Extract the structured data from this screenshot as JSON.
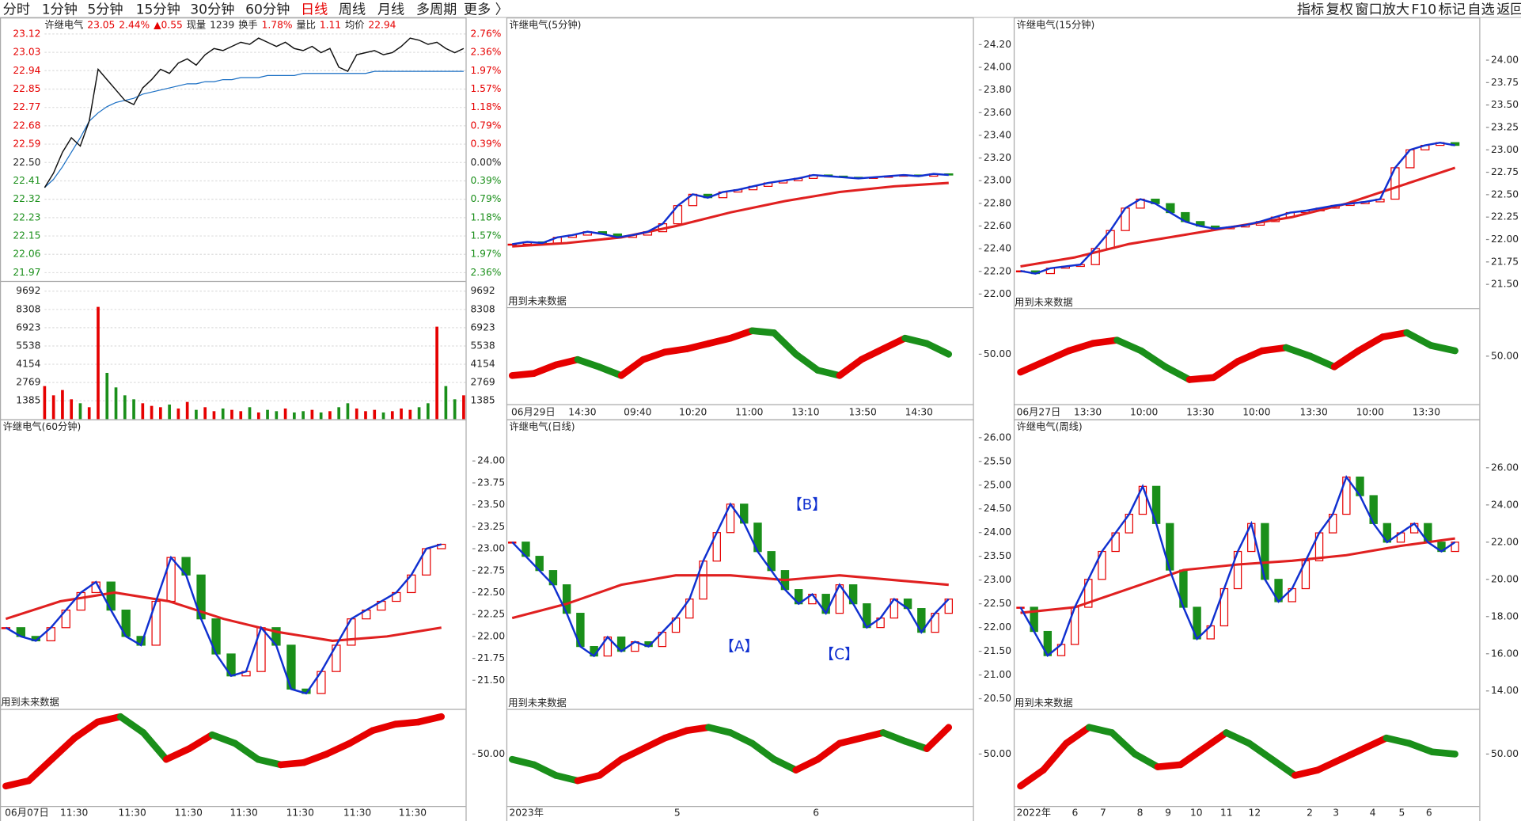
{
  "toolbar": {
    "tabs": [
      "分时",
      "1分钟",
      "5分钟",
      "15分钟",
      "30分钟",
      "60分钟",
      "日线",
      "周线",
      "月线",
      "多周期",
      "更多 〉"
    ],
    "active": 6,
    "tools": [
      "指标",
      "复权",
      "窗口放大",
      "F10",
      "标记",
      "自选",
      "返回"
    ]
  },
  "colors": {
    "up": "#e60000",
    "down": "#1a8f1a",
    "zigzag": "#1030d0",
    "avg": "#1a6fc4",
    "ma": "#e02020",
    "annotation": "#1030d0",
    "text": "#222222"
  },
  "intraday": {
    "header": [
      {
        "text": "许继电气",
        "color": "#222222"
      },
      {
        "text": "23.05",
        "color": "#e60000"
      },
      {
        "text": "2.44%",
        "color": "#e60000"
      },
      {
        "text": "▲0.55",
        "color": "#e60000"
      },
      {
        "text": "现量",
        "color": "#222222"
      },
      {
        "text": "1239",
        "color": "#222222"
      },
      {
        "text": "换手",
        "color": "#222222"
      },
      {
        "text": "1.78%",
        "color": "#e60000"
      },
      {
        "text": "量比",
        "color": "#222222"
      },
      {
        "text": "1.11",
        "color": "#e60000"
      },
      {
        "text": "均价",
        "color": "#222222"
      },
      {
        "text": "22.94",
        "color": "#e60000"
      }
    ],
    "price_labels": [
      "23.12",
      "23.03",
      "22.94",
      "22.85",
      "22.77",
      "22.68",
      "22.59",
      "22.50",
      "22.41",
      "22.32",
      "22.23",
      "22.15",
      "22.06",
      "21.97"
    ],
    "pct_labels": [
      "2.76%",
      "2.36%",
      "1.97%",
      "1.57%",
      "1.18%",
      "0.79%",
      "0.39%",
      "0.00%",
      "0.39%",
      "0.79%",
      "1.18%",
      "1.57%",
      "1.97%",
      "2.36%"
    ],
    "volume_labels": [
      "9692",
      "8308",
      "6923",
      "5538",
      "4154",
      "2769",
      "1385"
    ],
    "price": [
      22.38,
      22.45,
      22.55,
      22.62,
      22.58,
      22.7,
      22.95,
      22.9,
      22.85,
      22.8,
      22.78,
      22.86,
      22.9,
      22.95,
      22.93,
      22.98,
      23.0,
      22.97,
      23.02,
      23.05,
      23.04,
      23.06,
      23.08,
      23.07,
      23.1,
      23.08,
      23.06,
      23.08,
      23.05,
      23.04,
      23.06,
      23.03,
      23.05,
      22.96,
      22.94,
      23.02,
      23.03,
      23.04,
      23.02,
      23.03,
      23.06,
      23.1,
      23.09,
      23.07,
      23.08,
      23.05,
      23.03,
      23.05
    ],
    "avg": [
      22.38,
      22.42,
      22.48,
      22.55,
      22.62,
      22.7,
      22.74,
      22.77,
      22.79,
      22.8,
      22.81,
      22.83,
      22.84,
      22.85,
      22.86,
      22.87,
      22.88,
      22.88,
      22.89,
      22.89,
      22.9,
      22.9,
      22.91,
      22.91,
      22.91,
      22.92,
      22.92,
      22.92,
      22.92,
      22.93,
      22.93,
      22.93,
      22.93,
      22.93,
      22.93,
      22.93,
      22.93,
      22.94,
      22.94,
      22.94,
      22.94,
      22.94,
      22.94,
      22.94,
      22.94,
      22.94,
      22.94,
      22.94
    ],
    "volume": [
      2500,
      1800,
      2200,
      1500,
      1200,
      900,
      8500,
      3500,
      2400,
      1800,
      1500,
      1200,
      1000,
      900,
      1100,
      800,
      1300,
      700,
      900,
      600,
      800,
      700,
      600,
      900,
      500,
      700,
      600,
      800,
      500,
      600,
      700,
      500,
      600,
      900,
      1200,
      800,
      600,
      700,
      500,
      600,
      800,
      700,
      900,
      1200,
      7000,
      2500,
      1500,
      1800
    ]
  },
  "panels": [
    {
      "title": "许继电气(5分钟)",
      "price_labels": [
        "24.20",
        "24.00",
        "23.80",
        "23.60",
        "23.40",
        "23.20",
        "23.00",
        "22.80",
        "22.60",
        "22.40",
        "22.20",
        "22.00"
      ],
      "osc_label": "50.00",
      "notice": "用到未来数据",
      "x_labels": [
        "06月29日",
        "14:30",
        "09:40",
        "10:20",
        "11:00",
        "13:10",
        "13:50",
        "14:30"
      ],
      "closes": [
        22.44,
        22.46,
        22.45,
        22.5,
        22.52,
        22.55,
        22.53,
        22.5,
        22.52,
        22.55,
        22.62,
        22.78,
        22.88,
        22.85,
        22.9,
        22.92,
        22.95,
        22.98,
        23.0,
        23.02,
        23.05,
        23.04,
        23.03,
        23.02,
        23.03,
        23.04,
        23.05,
        23.04,
        23.06,
        23.05
      ],
      "ma": [
        22.42,
        22.45,
        22.5,
        22.6,
        22.72,
        22.82,
        22.9,
        22.95,
        22.98
      ],
      "indicator": [
        30,
        32,
        40,
        45,
        38,
        30,
        45,
        52,
        55,
        60,
        65,
        72,
        70,
        50,
        35,
        30,
        45,
        55,
        65,
        60,
        50
      ]
    },
    {
      "title": "许继电气(15分钟)",
      "price_labels": [
        "24.00",
        "23.75",
        "23.50",
        "23.25",
        "23.00",
        "22.75",
        "22.50",
        "22.25",
        "22.00",
        "21.75",
        "21.50"
      ],
      "osc_label": "50.00",
      "notice": "用到未来数据",
      "x_labels": [
        "06月27日",
        "13:30",
        "10:00",
        "13:30",
        "10:00",
        "13:30",
        "10:00",
        "13:30"
      ],
      "closes": [
        21.65,
        21.62,
        21.68,
        21.7,
        21.72,
        21.9,
        22.1,
        22.35,
        22.45,
        22.4,
        22.3,
        22.2,
        22.15,
        22.12,
        22.14,
        22.16,
        22.2,
        22.25,
        22.3,
        22.32,
        22.35,
        22.38,
        22.4,
        22.42,
        22.45,
        22.8,
        23.0,
        23.05,
        23.08,
        23.05
      ],
      "ma": [
        21.7,
        21.8,
        21.95,
        22.05,
        22.15,
        22.25,
        22.4,
        22.6,
        22.8
      ],
      "indicator": [
        35,
        45,
        55,
        62,
        65,
        55,
        40,
        28,
        30,
        45,
        55,
        58,
        50,
        40,
        55,
        68,
        72,
        60,
        55
      ]
    },
    {
      "title": "许继电气(60分钟)",
      "price_labels": [
        "24.00",
        "23.75",
        "23.50",
        "23.25",
        "23.00",
        "22.75",
        "22.50",
        "22.25",
        "22.00",
        "21.75",
        "21.50"
      ],
      "osc_label": "50.00",
      "notice": "用到未来数据",
      "x_labels": [
        "06月07日",
        "11:30",
        "11:30",
        "11:30",
        "11:30",
        "11:30",
        "11:30",
        "11:30"
      ],
      "closes": [
        22.1,
        22.0,
        21.95,
        22.1,
        22.3,
        22.5,
        22.62,
        22.3,
        22.0,
        21.9,
        22.4,
        22.9,
        22.7,
        22.2,
        21.8,
        21.55,
        21.6,
        22.1,
        21.9,
        21.4,
        21.35,
        21.6,
        21.9,
        22.2,
        22.3,
        22.4,
        22.5,
        22.7,
        23.0,
        23.05
      ],
      "ma": [
        22.2,
        22.4,
        22.5,
        22.4,
        22.2,
        22.05,
        21.95,
        22.0,
        22.1
      ],
      "indicator": [
        20,
        25,
        45,
        65,
        80,
        85,
        70,
        45,
        55,
        68,
        60,
        45,
        40,
        42,
        50,
        60,
        72,
        78,
        80,
        85
      ]
    },
    {
      "title": "许继电气(日线)",
      "price_labels": [
        "26.00",
        "25.50",
        "25.00",
        "24.50",
        "24.00",
        "23.50",
        "23.00",
        "22.50",
        "22.00",
        "21.50",
        "21.00",
        "20.50"
      ],
      "osc_label": "50.00",
      "notice": "用到未来数据",
      "x_labels": [
        "2023年",
        "5",
        "6"
      ],
      "annotations": [
        "【B】",
        "【A】",
        "【C】"
      ],
      "closes": [
        23.8,
        23.5,
        23.2,
        22.9,
        22.3,
        21.6,
        21.4,
        21.8,
        21.5,
        21.7,
        21.6,
        21.9,
        22.2,
        22.6,
        23.4,
        24.0,
        24.6,
        24.2,
        23.6,
        23.2,
        22.8,
        22.5,
        22.7,
        22.3,
        22.9,
        22.5,
        22.0,
        22.2,
        22.6,
        22.4,
        21.9,
        22.3,
        22.6
      ],
      "ma": [
        22.2,
        22.5,
        22.9,
        23.1,
        23.1,
        23.0,
        23.1,
        23.0,
        22.9
      ],
      "indicator": [
        45,
        40,
        30,
        25,
        30,
        45,
        55,
        65,
        72,
        75,
        70,
        60,
        45,
        35,
        45,
        60,
        65,
        70,
        62,
        55,
        75
      ]
    },
    {
      "title": "许继电气(周线)",
      "price_labels": [
        "26.00",
        "24.00",
        "22.00",
        "20.00",
        "18.00",
        "16.00",
        "14.00"
      ],
      "osc_label": "50.00",
      "notice": "用到未来数据",
      "x_labels": [
        "2022年",
        "6",
        "7",
        "8",
        "9",
        "10",
        "11",
        "12",
        "2",
        "3",
        "4",
        "5",
        "6"
      ],
      "closes": [
        18.5,
        17.2,
        15.9,
        16.5,
        18.5,
        20.0,
        21.5,
        22.5,
        23.5,
        25.0,
        23.0,
        20.5,
        18.5,
        16.8,
        17.5,
        19.5,
        21.5,
        23.0,
        20.0,
        18.8,
        19.5,
        21.0,
        22.5,
        23.5,
        25.5,
        24.5,
        23.0,
        22.0,
        22.5,
        23.0,
        22.0,
        21.5,
        22.0
      ],
      "ma": [
        18.2,
        18.5,
        19.5,
        20.5,
        20.8,
        21.0,
        21.3,
        21.8,
        22.2
      ],
      "indicator": [
        20,
        35,
        60,
        75,
        70,
        50,
        38,
        40,
        55,
        70,
        60,
        45,
        30,
        35,
        45,
        55,
        65,
        60,
        52,
        50
      ]
    }
  ]
}
